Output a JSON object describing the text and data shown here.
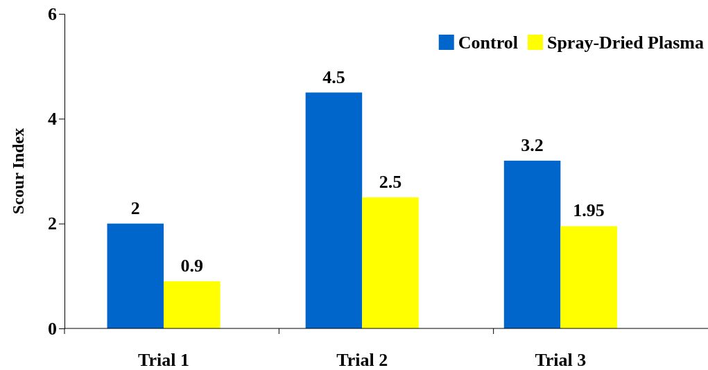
{
  "chart_data": {
    "type": "bar",
    "ylabel": "Scour Index",
    "categories": [
      "Trial 1",
      "Trial 2",
      "Trial 3"
    ],
    "series": [
      {
        "name": "Control",
        "color": "#0066cc",
        "values": [
          2,
          4.5,
          3.2
        ]
      },
      {
        "name": "Spray-Dried Plasma",
        "color": "#ffff00",
        "values": [
          0.9,
          2.5,
          1.95
        ]
      }
    ],
    "ylim": [
      0,
      6
    ],
    "yticks": [
      0,
      2,
      4,
      6
    ],
    "data_labels": true,
    "legend": "top right",
    "grid": false
  }
}
